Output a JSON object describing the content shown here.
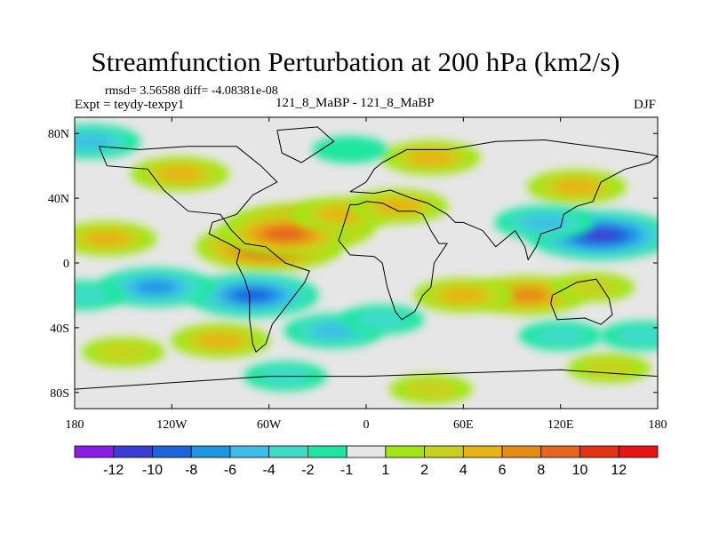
{
  "chart_data": {
    "type": "heatmap",
    "title": "Streamfunction Perturbation at 200 hPa (km2/s)",
    "stats_text": "rmsd= 3.56588 diff= -4.08381e-08",
    "experiment_text": "Expt = teydy-texpy1",
    "case_text": "121_8_MaBP - 121_8_MaBP",
    "season": "DJF",
    "x_axis": {
      "range": [
        -180,
        180
      ],
      "ticks": [
        -180,
        -120,
        -60,
        0,
        60,
        120,
        180
      ],
      "tick_labels": [
        "180",
        "120W",
        "60W",
        "0",
        "60E",
        "120E",
        "180"
      ]
    },
    "y_axis": {
      "range": [
        -90,
        90
      ],
      "ticks": [
        80,
        40,
        0,
        -40,
        -80
      ],
      "tick_labels": [
        "80N",
        "40N",
        "0",
        "40S",
        "80S"
      ]
    },
    "colorbar": {
      "levels": [
        -12,
        -10,
        -8,
        -6,
        -4,
        -2,
        -1,
        1,
        2,
        4,
        6,
        8,
        10,
        12
      ],
      "level_labels": [
        "-12",
        "-10",
        "-8",
        "-6",
        "-4",
        "-2",
        "-1",
        "1",
        "2",
        "4",
        "6",
        "8",
        "10",
        "12"
      ],
      "colors": [
        "#8a1ee6",
        "#3c3cd8",
        "#1e64dc",
        "#1e96e6",
        "#3cbee6",
        "#3cdcc8",
        "#1ee6a0",
        "#e6e6e6",
        "#a0e614",
        "#c8d21e",
        "#e6b414",
        "#e68c14",
        "#e6641e",
        "#e63214",
        "#e61414"
      ]
    },
    "anomalies": [
      {
        "lon": -60,
        "lat": 10,
        "value": 10
      },
      {
        "lon": -40,
        "lat": 22,
        "value": 10
      },
      {
        "lon": -50,
        "lat": 18,
        "value": 8
      },
      {
        "lon": -15,
        "lat": 30,
        "value": 4
      },
      {
        "lon": 20,
        "lat": 35,
        "value": 4
      },
      {
        "lon": 40,
        "lat": 65,
        "value": 4
      },
      {
        "lon": -115,
        "lat": 55,
        "value": 4
      },
      {
        "lon": -160,
        "lat": 15,
        "value": 4
      },
      {
        "lon": 100,
        "lat": -20,
        "value": 6
      },
      {
        "lon": 60,
        "lat": -20,
        "value": 4
      },
      {
        "lon": 140,
        "lat": -15,
        "value": 2
      },
      {
        "lon": -90,
        "lat": -48,
        "value": 4
      },
      {
        "lon": -150,
        "lat": -55,
        "value": 2
      },
      {
        "lon": 150,
        "lat": -65,
        "value": 2
      },
      {
        "lon": 130,
        "lat": 47,
        "value": 4
      },
      {
        "lon": 40,
        "lat": -78,
        "value": 2
      },
      {
        "lon": 145,
        "lat": 17,
        "value": -10
      },
      {
        "lon": 110,
        "lat": 25,
        "value": -4
      },
      {
        "lon": -70,
        "lat": -20,
        "value": -8
      },
      {
        "lon": -130,
        "lat": -15,
        "value": -6
      },
      {
        "lon": -170,
        "lat": 75,
        "value": -4
      },
      {
        "lon": -20,
        "lat": -42,
        "value": -4
      },
      {
        "lon": 10,
        "lat": -35,
        "value": -2
      },
      {
        "lon": -50,
        "lat": -70,
        "value": -2
      },
      {
        "lon": 120,
        "lat": -45,
        "value": -2
      },
      {
        "lon": 170,
        "lat": -45,
        "value": -2
      },
      {
        "lon": -175,
        "lat": -20,
        "value": -2
      },
      {
        "lon": -10,
        "lat": 70,
        "value": -1
      }
    ]
  }
}
